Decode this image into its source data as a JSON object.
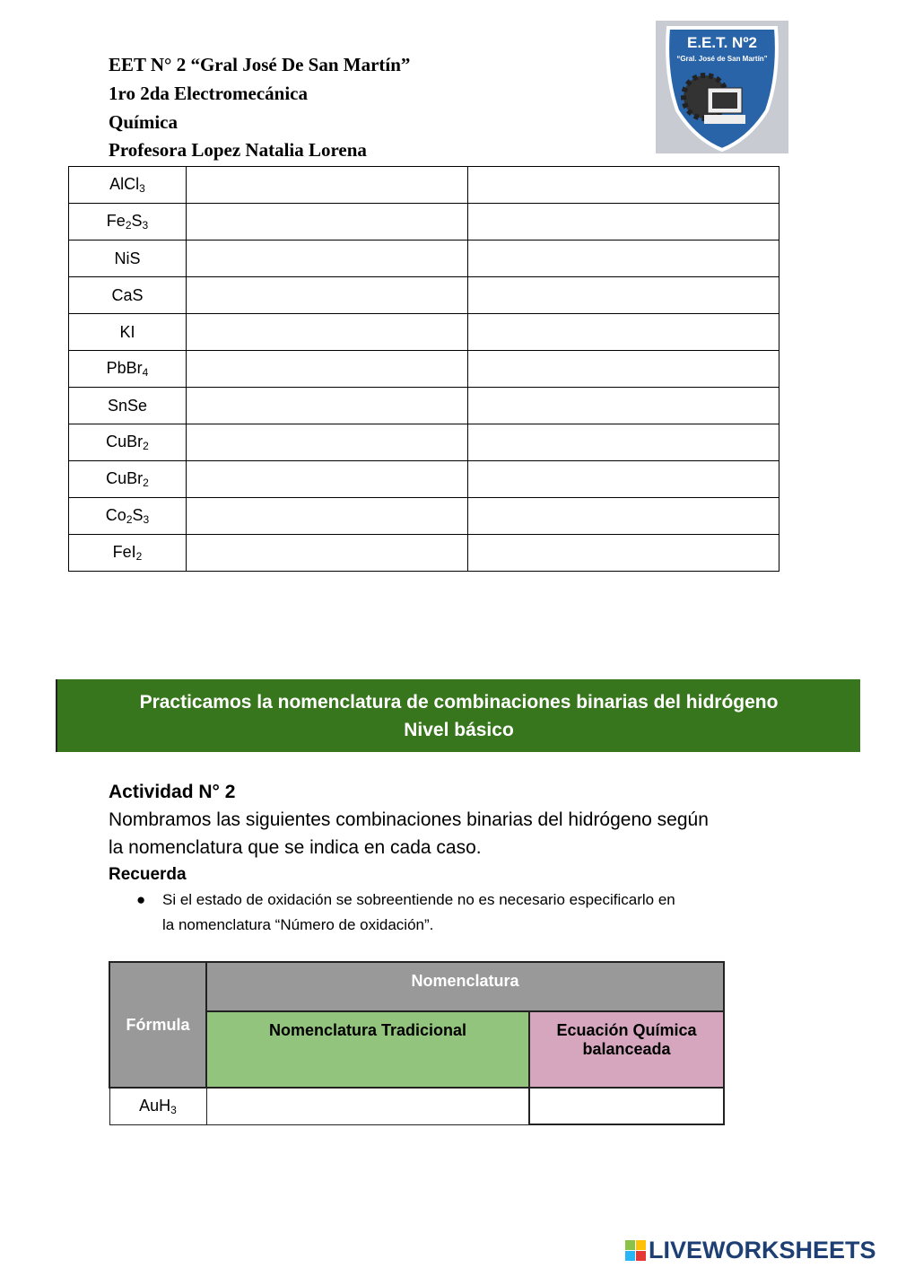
{
  "header": {
    "school": "EET N° 2 “Gral José De San Martín”",
    "course": "1ro 2da Electromecánica",
    "subject": "Química",
    "teacher": "Profesora Lopez Natalia Lorena"
  },
  "logo": {
    "text_line1": "E.E.T. Nº2",
    "text_line2": "“Gral. José de San Martín”",
    "colors": {
      "shield": "#2a64a8",
      "border": "#ffffff"
    }
  },
  "table1": {
    "rows": [
      [
        [
          "Al",
          ""
        ],
        [
          "Cl",
          "3"
        ]
      ],
      [
        [
          "Fe",
          "2"
        ],
        [
          "S",
          "3"
        ]
      ],
      [
        [
          "NiS",
          ""
        ]
      ],
      [
        [
          "CaS",
          ""
        ]
      ],
      [
        [
          "KI",
          ""
        ]
      ],
      [
        [
          "PbBr",
          "4"
        ]
      ],
      [
        [
          "SnSe",
          ""
        ]
      ],
      [
        [
          "CuBr",
          "2"
        ]
      ],
      [
        [
          "CuBr",
          "2"
        ]
      ],
      [
        [
          "Co",
          "2"
        ],
        [
          "S",
          "3"
        ]
      ],
      [
        [
          "FeI",
          "2"
        ]
      ]
    ]
  },
  "banner": {
    "line1": "Practicamos la nomenclatura de combinaciones binarias del hidrógeno",
    "line2": "Nivel básico",
    "color": "#38761d"
  },
  "activity": {
    "title": "Actividad N° 2",
    "instruction_line1": "Nombramos las siguientes combinaciones binarias del hidrógeno según",
    "instruction_line2": "la nomenclatura que se indica en cada caso.",
    "remember": "Recuerda",
    "bullet_line1": "Si el estado de oxidación se sobreentiende no es necesario especificarlo en",
    "bullet_line2": "la nomenclatura “Número de oxidación”."
  },
  "table2": {
    "formula_header": "Fórmula",
    "nomenclatura_header": "Nomenclatura",
    "col_traditional": "Nomenclatura Tradicional",
    "col_equation": "Ecuación Química balanceada",
    "rows": [
      {
        "formula_base": "AuH",
        "formula_sub": "3"
      }
    ],
    "colors": {
      "gray": "#999999",
      "green": "#93c47d",
      "pink": "#d5a6bd"
    }
  },
  "footer": {
    "brand": "LIVEWORKSHEETS"
  }
}
